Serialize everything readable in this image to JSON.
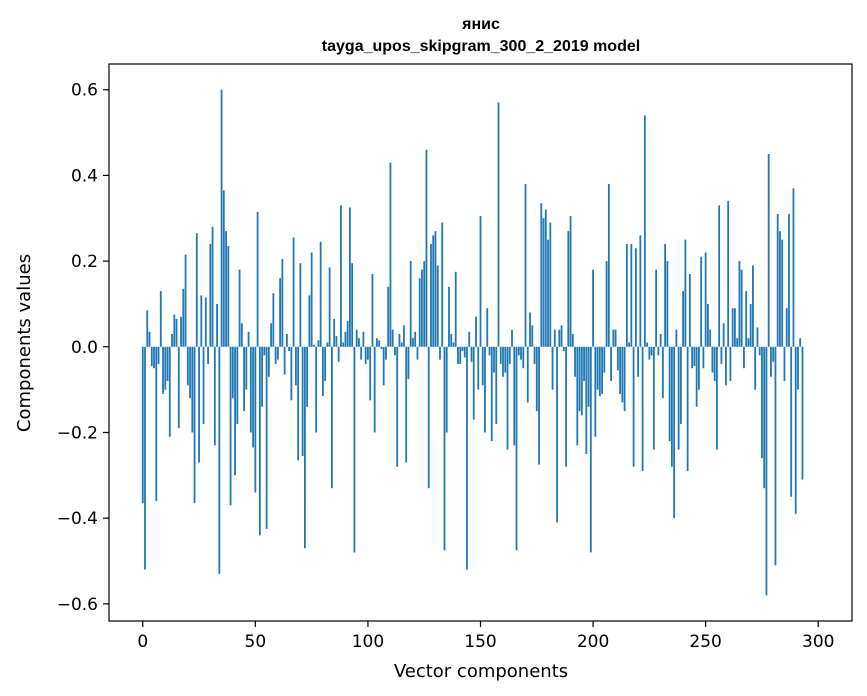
{
  "chart_data": {
    "type": "bar",
    "title": "янис",
    "subtitle": "tayga_upos_skipgram_300_2_2019 model",
    "xlabel": "Vector components",
    "ylabel": "Components values",
    "xlim": [
      -15,
      315
    ],
    "ylim": [
      -0.64,
      0.66
    ],
    "xticks": [
      0,
      50,
      100,
      150,
      200,
      250,
      300
    ],
    "yticks": [
      -0.6,
      -0.4,
      -0.2,
      0.0,
      0.2,
      0.4,
      0.6
    ],
    "ytick_labels": [
      "−0.6",
      "−0.4",
      "−0.2",
      "0.0",
      "0.2",
      "0.4",
      "0.6"
    ],
    "color": "#1f77b4",
    "values": [
      -0.365,
      -0.52,
      0.085,
      0.035,
      -0.045,
      -0.05,
      -0.36,
      -0.04,
      0.13,
      -0.11,
      -0.1,
      -0.08,
      -0.21,
      0.03,
      0.075,
      0.065,
      -0.19,
      0.07,
      0.135,
      0.215,
      -0.09,
      -0.12,
      -0.2,
      -0.365,
      0.265,
      -0.27,
      0.12,
      -0.18,
      0.115,
      -0.04,
      0.24,
      0.28,
      -0.23,
      0.1,
      -0.53,
      0.6,
      0.365,
      0.27,
      0.235,
      -0.37,
      -0.12,
      -0.3,
      -0.18,
      0.18,
      0.055,
      -0.15,
      -0.1,
      0.035,
      -0.2,
      -0.235,
      -0.34,
      0.315,
      -0.44,
      -0.14,
      -0.02,
      -0.425,
      -0.07,
      0.055,
      0.125,
      -0.04,
      -0.03,
      0.16,
      0.205,
      -0.065,
      0.03,
      -0.01,
      -0.125,
      0.255,
      -0.09,
      -0.265,
      0.195,
      -0.255,
      -0.47,
      -0.14,
      0.12,
      0.22,
      0.005,
      -0.2,
      0.015,
      0.245,
      -0.115,
      -0.08,
      0.01,
      0.185,
      -0.33,
      0.065,
      0.025,
      -0.035,
      0.33,
      0.01,
      0.035,
      0.06,
      0.325,
      0.195,
      -0.48,
      0.04,
      0.02,
      -0.03,
      0.035,
      -0.04,
      -0.03,
      -0.125,
      0.17,
      -0.2,
      0.02,
      0.015,
      -0.005,
      -0.09,
      -0.03,
      0.14,
      0.43,
      0.04,
      -0.02,
      -0.28,
      0.03,
      0.01,
      0.05,
      -0.27,
      -0.075,
      0.2,
      0.02,
      0.035,
      -0.03,
      0.16,
      0.18,
      0.2,
      0.46,
      -0.33,
      0.24,
      0.26,
      0.27,
      0.19,
      -0.03,
      0.29,
      -0.475,
      -0.2,
      0.14,
      0.03,
      0.01,
      0.175,
      -0.04,
      -0.04,
      -0.01,
      -0.025,
      -0.52,
      0.035,
      -0.035,
      -0.17,
      0.07,
      -0.1,
      0.305,
      -0.09,
      -0.2,
      0.09,
      -0.02,
      -0.22,
      -0.06,
      -0.18,
      0.57,
      -0.04,
      -0.07,
      -0.06,
      -0.24,
      -0.04,
      0.04,
      -0.23,
      -0.475,
      -0.02,
      -0.03,
      -0.05,
      0.38,
      -0.13,
      0.08,
      0.05,
      -0.04,
      -0.15,
      -0.275,
      0.335,
      0.3,
      0.32,
      0.25,
      0.29,
      -0.1,
      0.04,
      -0.41,
      0.04,
      0.05,
      -0.01,
      -0.28,
      0.27,
      0.305,
      0.03,
      -0.07,
      -0.23,
      -0.15,
      -0.16,
      -0.08,
      -0.25,
      -0.14,
      -0.48,
      0.18,
      -0.21,
      -0.1,
      -0.115,
      -0.11,
      -0.06,
      0.2,
      0.38,
      -0.08,
      0.04,
      0.04,
      -0.055,
      -0.11,
      -0.13,
      -0.15,
      0.24,
      0.01,
      0.24,
      -0.28,
      0.23,
      -0.07,
      0.26,
      -0.29,
      0.54,
      0.01,
      -0.03,
      -0.02,
      -0.24,
      0.18,
      -0.02,
      0.03,
      -0.12,
      0.24,
      0.2,
      -0.22,
      -0.28,
      -0.4,
      0.04,
      -0.24,
      -0.18,
      0.13,
      0.25,
      -0.29,
      0.17,
      -0.05,
      -0.045,
      -0.14,
      -0.1,
      0.21,
      -0.05,
      0.22,
      0.1,
      0.04,
      -0.06,
      -0.08,
      -0.24,
      0.33,
      -0.04,
      0.055,
      -0.09,
      0.34,
      -0.08,
      0.09,
      0.09,
      0.02,
      0.2,
      0.18,
      -0.05,
      0.13,
      0.02,
      0.1,
      0.19,
      -0.1,
      0.045,
      -0.02,
      -0.26,
      -0.33,
      -0.58,
      0.45,
      -0.07,
      -0.035,
      -0.51,
      0.31,
      0.27,
      0.25,
      -0.08,
      0.09,
      0.31,
      -0.35,
      0.37,
      -0.39,
      -0.1,
      0.02,
      -0.31
    ]
  }
}
